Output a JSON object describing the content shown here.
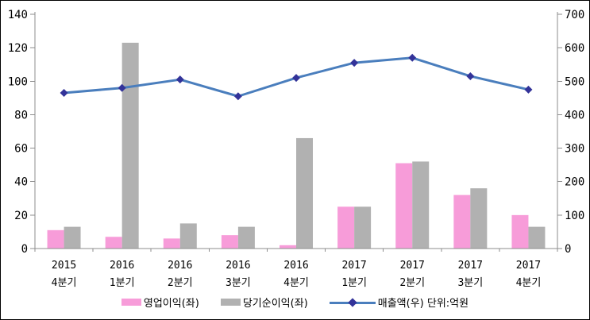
{
  "frame": {
    "background": "#ffffff",
    "border_color": "#000000"
  },
  "chart_data": {
    "type": "bar+line combo",
    "title": "",
    "grid": false,
    "legend_position": "bottom",
    "axis_color": "#8E8E8E",
    "text_color": "#000000",
    "categories": [
      {
        "year": "2015",
        "quarter": "4분기"
      },
      {
        "year": "2016",
        "quarter": "1분기"
      },
      {
        "year": "2016",
        "quarter": "2분기"
      },
      {
        "year": "2016",
        "quarter": "3분기"
      },
      {
        "year": "2016",
        "quarter": "4분기"
      },
      {
        "year": "2017",
        "quarter": "1분기"
      },
      {
        "year": "2017",
        "quarter": "2분기"
      },
      {
        "year": "2017",
        "quarter": "3분기"
      },
      {
        "year": "2017",
        "quarter": "4분기"
      }
    ],
    "bar_series": [
      {
        "name": "영업이익(좌)",
        "axis": "left",
        "type": "bar",
        "color": "#F79CD9",
        "values": [
          11,
          7,
          6,
          8,
          2,
          25,
          51,
          32,
          20
        ]
      },
      {
        "name": "당기순이익(좌)",
        "axis": "left",
        "type": "bar",
        "color": "#B1B1B1",
        "values": [
          13,
          123,
          15,
          13,
          66,
          25,
          52,
          36,
          13
        ]
      }
    ],
    "line_series": {
      "name": "매출액(우) 단위:억원",
      "axis": "right",
      "type": "line",
      "line_color": "#4A7EBD",
      "marker_color": "#333399",
      "marker_shape": "diamond",
      "values": [
        465,
        480,
        505,
        455,
        510,
        555,
        570,
        515,
        475
      ]
    },
    "left_axis": {
      "min": 0,
      "max": 140,
      "step": 20,
      "tick_labels": [
        "0",
        "20",
        "40",
        "60",
        "80",
        "100",
        "120",
        "140"
      ]
    },
    "right_axis": {
      "min": 0,
      "max": 700,
      "step": 100,
      "tick_labels": [
        "0",
        "100",
        "200",
        "300",
        "400",
        "500",
        "600",
        "700"
      ]
    }
  }
}
